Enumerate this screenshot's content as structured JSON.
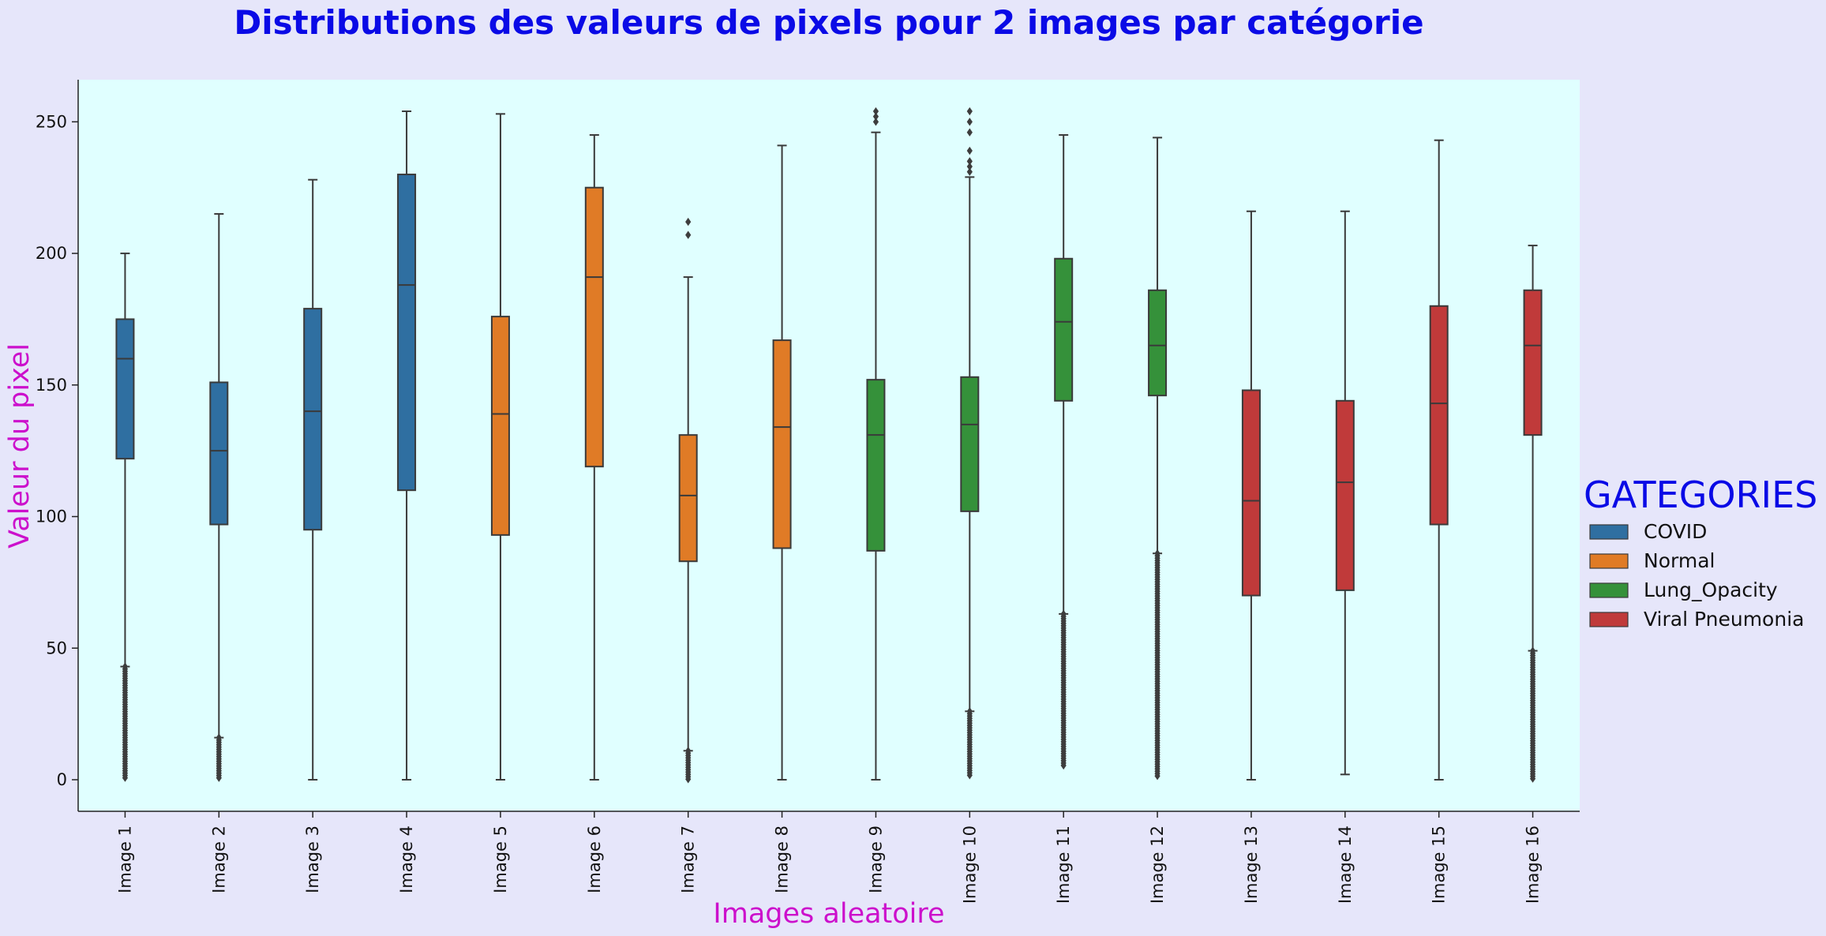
{
  "chart_data": {
    "type": "box",
    "title": "Distributions des valeurs de pixels pour 2 images par catégorie",
    "xlabel": "Images aleatoire",
    "ylabel": "Valeur du pixel",
    "ylim": [
      -12,
      266
    ],
    "yticks": [
      0,
      50,
      100,
      150,
      200,
      250
    ],
    "grid": false,
    "legend_title": "GATEGORIES",
    "legend_position": "right",
    "series": [
      {
        "name": "COVID",
        "color": "#2f6fa1"
      },
      {
        "name": "Normal",
        "color": "#e07b26"
      },
      {
        "name": "Lung_Opacity",
        "color": "#35913a"
      },
      {
        "name": "Viral Pneumonia",
        "color": "#c03a3a"
      }
    ],
    "categories": [
      "Image 1",
      "Image 2",
      "Image 3",
      "Image 4",
      "Image 5",
      "Image 6",
      "Image 7",
      "Image 8",
      "Image 9",
      "Image 10",
      "Image 11",
      "Image 12",
      "Image 13",
      "Image 14",
      "Image 15",
      "Image 16"
    ],
    "boxes": [
      {
        "series": 0,
        "lw": 43,
        "q1": 122,
        "median": 160,
        "q3": 175,
        "uw": 200,
        "outliers_low": [
          0,
          43
        ],
        "outliers_high": []
      },
      {
        "series": 0,
        "lw": 16,
        "q1": 97,
        "median": 125,
        "q3": 151,
        "uw": 215,
        "outliers_low": [
          0,
          16
        ],
        "outliers_high": []
      },
      {
        "series": 0,
        "lw": 0,
        "q1": 95,
        "median": 140,
        "q3": 179,
        "uw": 228,
        "outliers_low": [],
        "outliers_high": []
      },
      {
        "series": 0,
        "lw": 0,
        "q1": 110,
        "median": 188,
        "q3": 230,
        "uw": 254,
        "outliers_low": [],
        "outliers_high": []
      },
      {
        "series": 1,
        "lw": 0,
        "q1": 93,
        "median": 139,
        "q3": 176,
        "uw": 253,
        "outliers_low": [],
        "outliers_high": []
      },
      {
        "series": 1,
        "lw": 0,
        "q1": 119,
        "median": 191,
        "q3": 225,
        "uw": 245,
        "outliers_low": [],
        "outliers_high": []
      },
      {
        "series": 1,
        "lw": 11,
        "q1": 83,
        "median": 108,
        "q3": 131,
        "uw": 191,
        "outliers_low": [
          0,
          11
        ],
        "outliers_high": [
          207,
          212
        ]
      },
      {
        "series": 1,
        "lw": 0,
        "q1": 88,
        "median": 134,
        "q3": 167,
        "uw": 241,
        "outliers_low": [],
        "outliers_high": []
      },
      {
        "series": 2,
        "lw": 0,
        "q1": 87,
        "median": 131,
        "q3": 152,
        "uw": 246,
        "outliers_low": [],
        "outliers_high": [
          250,
          252,
          254
        ]
      },
      {
        "series": 2,
        "lw": 26,
        "q1": 102,
        "median": 135,
        "q3": 153,
        "uw": 229,
        "outliers_low": [
          1,
          26
        ],
        "outliers_high": [
          231,
          233,
          235,
          239,
          246,
          250,
          254
        ]
      },
      {
        "series": 2,
        "lw": 63,
        "q1": 144,
        "median": 174,
        "q3": 198,
        "uw": 245,
        "outliers_low": [
          5,
          63
        ],
        "outliers_high": []
      },
      {
        "series": 2,
        "lw": 86,
        "q1": 146,
        "median": 165,
        "q3": 186,
        "uw": 244,
        "outliers_low": [
          1,
          86
        ],
        "outliers_high": []
      },
      {
        "series": 3,
        "lw": 0,
        "q1": 70,
        "median": 106,
        "q3": 148,
        "uw": 216,
        "outliers_low": [],
        "outliers_high": []
      },
      {
        "series": 3,
        "lw": 2,
        "q1": 72,
        "median": 113,
        "q3": 144,
        "uw": 216,
        "outliers_low": [],
        "outliers_high": []
      },
      {
        "series": 3,
        "lw": 0,
        "q1": 97,
        "median": 143,
        "q3": 180,
        "uw": 243,
        "outliers_low": [],
        "outliers_high": []
      },
      {
        "series": 3,
        "lw": 49,
        "q1": 131,
        "median": 165,
        "q3": 186,
        "uw": 203,
        "outliers_low": [
          0,
          49
        ],
        "outliers_high": []
      }
    ]
  }
}
